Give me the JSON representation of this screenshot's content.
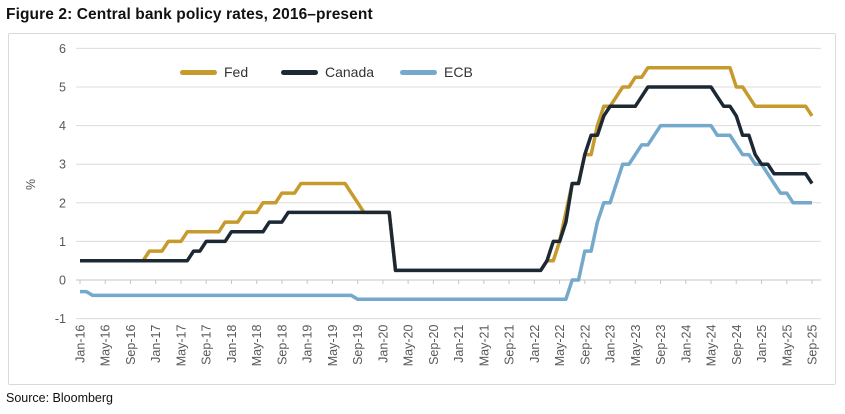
{
  "title": "Figure 2: Central bank policy rates, 2016–present",
  "source": "Source: Bloomberg",
  "colors": {
    "fed": "#C79A2E",
    "canada": "#1C2833",
    "ecb": "#74A9CC",
    "gridline": "#DCDCDC",
    "axis_line": "#C6C6C6",
    "axis_text": "#595959"
  },
  "chart_data": {
    "type": "line",
    "title": "Figure 2: Central bank policy rates, 2016–present",
    "xlabel": "",
    "ylabel": "%",
    "ylim": [
      -1,
      6
    ],
    "y_ticks": [
      6,
      5,
      4,
      3,
      2,
      1,
      0,
      -1
    ],
    "grid": "horizontal",
    "legend_position": "top",
    "x_unit": "monthly, Jan-2016 through Sep-2025 (117 points)",
    "x_tick_labels": [
      "Jan-16",
      "May-16",
      "Sep-16",
      "Jan-17",
      "May-17",
      "Sep-17",
      "Jan-18",
      "May-18",
      "Sep-18",
      "Jan-19",
      "May-19",
      "Sep-19",
      "Jan-20",
      "May-20",
      "Sep-20",
      "Jan-21",
      "May-21",
      "Sep-21",
      "Jan-22",
      "May-22",
      "Sep-22",
      "Jan-23",
      "May-23",
      "Sep-23",
      "Jan-24",
      "May-24",
      "Sep-24",
      "Jan-25",
      "May-25",
      "Sep-25"
    ],
    "x_tick_month_indices": [
      0,
      4,
      8,
      12,
      16,
      20,
      24,
      28,
      32,
      36,
      40,
      44,
      48,
      52,
      56,
      60,
      64,
      68,
      72,
      76,
      80,
      84,
      88,
      92,
      96,
      100,
      104,
      108,
      112,
      116
    ],
    "series": [
      {
        "name": "Fed",
        "color": "#C79A2E",
        "values": [
          0.5,
          0.5,
          0.5,
          0.5,
          0.5,
          0.5,
          0.5,
          0.5,
          0.5,
          0.5,
          0.5,
          0.75,
          0.75,
          0.75,
          1.0,
          1.0,
          1.0,
          1.25,
          1.25,
          1.25,
          1.25,
          1.25,
          1.25,
          1.5,
          1.5,
          1.5,
          1.75,
          1.75,
          1.75,
          2.0,
          2.0,
          2.0,
          2.25,
          2.25,
          2.25,
          2.5,
          2.5,
          2.5,
          2.5,
          2.5,
          2.5,
          2.5,
          2.5,
          2.25,
          2.0,
          1.75,
          1.75,
          1.75,
          1.75,
          1.75,
          0.25,
          0.25,
          0.25,
          0.25,
          0.25,
          0.25,
          0.25,
          0.25,
          0.25,
          0.25,
          0.25,
          0.25,
          0.25,
          0.25,
          0.25,
          0.25,
          0.25,
          0.25,
          0.25,
          0.25,
          0.25,
          0.25,
          0.25,
          0.25,
          0.5,
          0.5,
          1.0,
          1.75,
          2.5,
          2.5,
          3.25,
          3.25,
          4.0,
          4.5,
          4.5,
          4.75,
          5.0,
          5.0,
          5.25,
          5.25,
          5.5,
          5.5,
          5.5,
          5.5,
          5.5,
          5.5,
          5.5,
          5.5,
          5.5,
          5.5,
          5.5,
          5.5,
          5.5,
          5.5,
          5.0,
          5.0,
          4.75,
          4.5,
          4.5,
          4.5,
          4.5,
          4.5,
          4.5,
          4.5,
          4.5,
          4.5,
          4.25
        ]
      },
      {
        "name": "Canada",
        "color": "#1C2833",
        "values": [
          0.5,
          0.5,
          0.5,
          0.5,
          0.5,
          0.5,
          0.5,
          0.5,
          0.5,
          0.5,
          0.5,
          0.5,
          0.5,
          0.5,
          0.5,
          0.5,
          0.5,
          0.5,
          0.75,
          0.75,
          1.0,
          1.0,
          1.0,
          1.0,
          1.25,
          1.25,
          1.25,
          1.25,
          1.25,
          1.25,
          1.5,
          1.5,
          1.5,
          1.75,
          1.75,
          1.75,
          1.75,
          1.75,
          1.75,
          1.75,
          1.75,
          1.75,
          1.75,
          1.75,
          1.75,
          1.75,
          1.75,
          1.75,
          1.75,
          1.75,
          0.25,
          0.25,
          0.25,
          0.25,
          0.25,
          0.25,
          0.25,
          0.25,
          0.25,
          0.25,
          0.25,
          0.25,
          0.25,
          0.25,
          0.25,
          0.25,
          0.25,
          0.25,
          0.25,
          0.25,
          0.25,
          0.25,
          0.25,
          0.25,
          0.5,
          1.0,
          1.0,
          1.5,
          2.5,
          2.5,
          3.25,
          3.75,
          3.75,
          4.25,
          4.5,
          4.5,
          4.5,
          4.5,
          4.5,
          4.75,
          5.0,
          5.0,
          5.0,
          5.0,
          5.0,
          5.0,
          5.0,
          5.0,
          5.0,
          5.0,
          5.0,
          4.75,
          4.5,
          4.5,
          4.25,
          3.75,
          3.75,
          3.25,
          3.0,
          3.0,
          2.75,
          2.75,
          2.75,
          2.75,
          2.75,
          2.75,
          2.5
        ]
      },
      {
        "name": "ECB",
        "color": "#74A9CC",
        "values": [
          -0.3,
          -0.3,
          -0.4,
          -0.4,
          -0.4,
          -0.4,
          -0.4,
          -0.4,
          -0.4,
          -0.4,
          -0.4,
          -0.4,
          -0.4,
          -0.4,
          -0.4,
          -0.4,
          -0.4,
          -0.4,
          -0.4,
          -0.4,
          -0.4,
          -0.4,
          -0.4,
          -0.4,
          -0.4,
          -0.4,
          -0.4,
          -0.4,
          -0.4,
          -0.4,
          -0.4,
          -0.4,
          -0.4,
          -0.4,
          -0.4,
          -0.4,
          -0.4,
          -0.4,
          -0.4,
          -0.4,
          -0.4,
          -0.4,
          -0.4,
          -0.4,
          -0.5,
          -0.5,
          -0.5,
          -0.5,
          -0.5,
          -0.5,
          -0.5,
          -0.5,
          -0.5,
          -0.5,
          -0.5,
          -0.5,
          -0.5,
          -0.5,
          -0.5,
          -0.5,
          -0.5,
          -0.5,
          -0.5,
          -0.5,
          -0.5,
          -0.5,
          -0.5,
          -0.5,
          -0.5,
          -0.5,
          -0.5,
          -0.5,
          -0.5,
          -0.5,
          -0.5,
          -0.5,
          -0.5,
          -0.5,
          0.0,
          0.0,
          0.75,
          0.75,
          1.5,
          2.0,
          2.0,
          2.5,
          3.0,
          3.0,
          3.25,
          3.5,
          3.5,
          3.75,
          4.0,
          4.0,
          4.0,
          4.0,
          4.0,
          4.0,
          4.0,
          4.0,
          4.0,
          3.75,
          3.75,
          3.75,
          3.5,
          3.25,
          3.25,
          3.0,
          3.0,
          2.75,
          2.5,
          2.25,
          2.25,
          2.0,
          2.0,
          2.0,
          2.0
        ]
      }
    ]
  }
}
